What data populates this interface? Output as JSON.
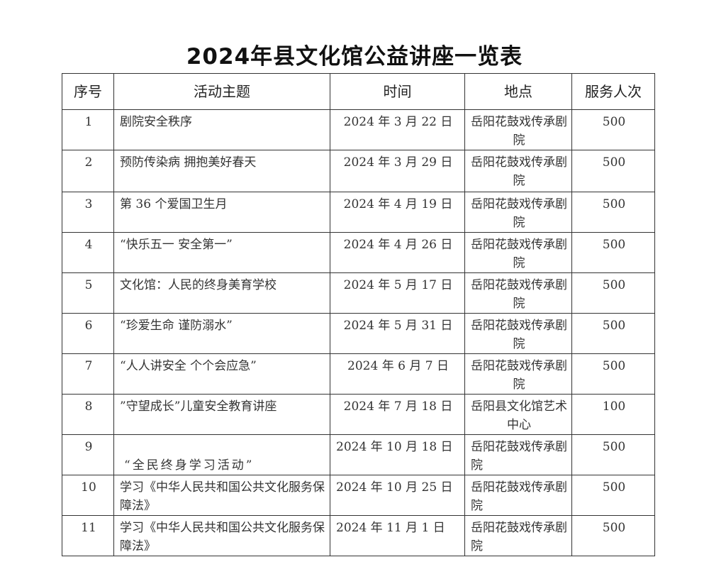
{
  "title": "2024年县文化馆公益讲座一览表",
  "headers": [
    "序号",
    "活动主题",
    "时间",
    "地点",
    "服务人次"
  ],
  "rows": [
    {
      "no": "1",
      "theme": "剧院安全秩序",
      "date": "2024 年 3 月 22 日",
      "place": "岳阳花鼓戏传承剧院",
      "count": "500"
    },
    {
      "no": "2",
      "theme": "预防传染病 拥抱美好春天",
      "date": "2024 年 3 月 29 日",
      "place": "岳阳花鼓戏传承剧院",
      "count": "500"
    },
    {
      "no": "3",
      "theme": "第 36 个爱国卫生月",
      "date": "2024 年 4 月 19 日",
      "place": "岳阳花鼓戏传承剧院",
      "count": "500"
    },
    {
      "no": "4",
      "theme": " “快乐五一  安全第一”",
      "date": "2024 年 4 月 26 日",
      "place": "岳阳花鼓戏传承剧院",
      "count": "500"
    },
    {
      "no": "5",
      "theme": "文化馆：人民的终身美育学校",
      "date": "2024 年 5 月 17 日",
      "place": "岳阳花鼓戏传承剧院",
      "count": "500"
    },
    {
      "no": "6",
      "theme": " “珍爱生命  谨防溺水”",
      "date": "2024 年 5 月 31 日",
      "place": "岳阳花鼓戏传承剧院",
      "count": "500"
    },
    {
      "no": "7",
      "theme": " “人人讲安全   个个会应急”",
      "date": "2024 年 6 月 7 日",
      "place": "岳阳花鼓戏传承剧院",
      "count": "500"
    },
    {
      "no": "8",
      "theme": "”守望成长”儿童安全教育讲座",
      "date": "2024 年 7 月 18 日",
      "place": "岳阳县文化馆艺术中心",
      "count": "100"
    },
    {
      "no": "9",
      "theme": "“全民终身学习活动”",
      "date": "2024 年 10 月 18 日",
      "place": "岳阳花鼓戏传承剧院",
      "count": "500"
    },
    {
      "no": "10",
      "theme": "学习《中华人民共和国公共文化服务保障法》",
      "date": "2024 年 10 月 25 日",
      "place": "岳阳花鼓戏传承剧院",
      "count": "500"
    },
    {
      "no": "11",
      "theme": "学习《中华人民共和国公共文化服务保障法》",
      "date": "2024 年 11 月 1 日",
      "place": "岳阳花鼓戏传承剧院",
      "count": "500"
    }
  ]
}
